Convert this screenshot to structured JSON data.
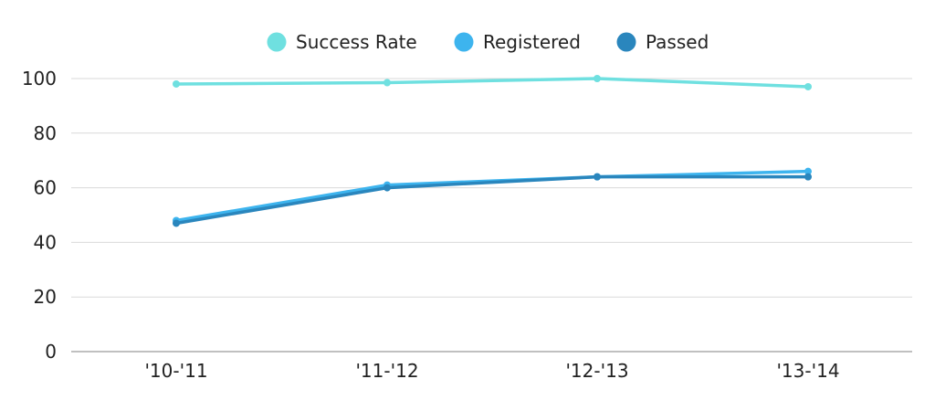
{
  "chart_data": {
    "type": "line",
    "categories": [
      "'10-'11",
      "'11-'12",
      "'12-'13",
      "'13-'14"
    ],
    "ylim": [
      0,
      100
    ],
    "yticks": [
      0,
      20,
      40,
      60,
      80,
      100
    ],
    "grid": true,
    "legend_position": "top-center",
    "series": [
      {
        "name": "Success Rate",
        "color": "#6fe0e0",
        "values": [
          98,
          98.5,
          100,
          97
        ]
      },
      {
        "name": "Registered",
        "color": "#3db4ee",
        "values": [
          48,
          61,
          64,
          66
        ]
      },
      {
        "name": "Passed",
        "color": "#2a86bd",
        "values": [
          47,
          60,
          64,
          64
        ]
      }
    ]
  }
}
